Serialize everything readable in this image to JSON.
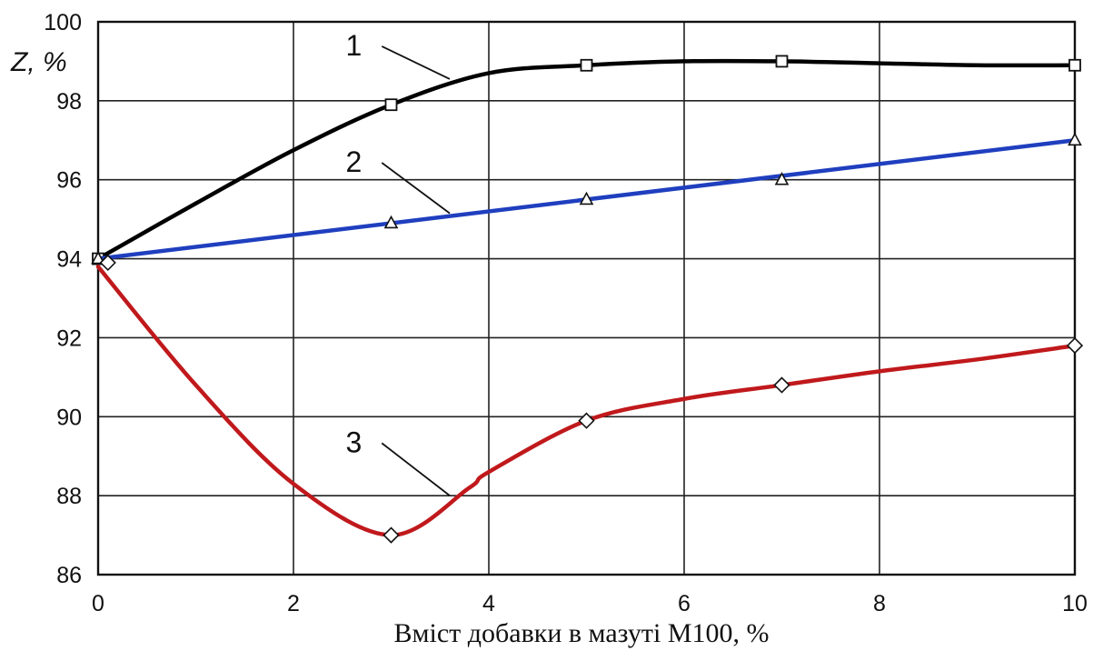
{
  "chart_data": {
    "type": "line",
    "title": "",
    "xlabel": "Вміст добавки в мазуті М100, %",
    "ylabel": "Z, %",
    "xlim": [
      0,
      10
    ],
    "ylim": [
      86,
      100
    ],
    "x_ticks": [
      0,
      2,
      4,
      6,
      8,
      10
    ],
    "y_ticks": [
      86,
      88,
      90,
      92,
      94,
      96,
      98,
      100
    ],
    "grid": true,
    "legend": "none",
    "series": [
      {
        "name": "1",
        "color": "#000000",
        "marker": "square",
        "points": [
          [
            0,
            94
          ],
          [
            3,
            97.9
          ],
          [
            5,
            98.9
          ],
          [
            7,
            99.0
          ],
          [
            10,
            98.9
          ]
        ],
        "curve": [
          [
            0,
            94
          ],
          [
            1,
            95.4
          ],
          [
            2,
            96.75
          ],
          [
            3,
            97.9
          ],
          [
            4,
            98.7
          ],
          [
            5,
            98.9
          ],
          [
            6,
            99.0
          ],
          [
            7,
            99.0
          ],
          [
            8,
            98.95
          ],
          [
            9,
            98.9
          ],
          [
            10,
            98.9
          ]
        ]
      },
      {
        "name": "2",
        "color": "#1f3fbf",
        "marker": "triangle",
        "points": [
          [
            0,
            94
          ],
          [
            3,
            94.9
          ],
          [
            5,
            95.5
          ],
          [
            7,
            96.0
          ],
          [
            10,
            97.0
          ]
        ],
        "curve": [
          [
            0,
            94
          ],
          [
            10,
            97.0
          ]
        ]
      },
      {
        "name": "3",
        "color": "#c0191c",
        "marker": "diamond",
        "points": [
          [
            0.1,
            93.9
          ],
          [
            3,
            87.0
          ],
          [
            5,
            89.9
          ],
          [
            7,
            90.8
          ],
          [
            10,
            91.8
          ]
        ],
        "curve": [
          [
            0,
            93.8
          ],
          [
            1,
            90.8
          ],
          [
            2,
            88.3
          ],
          [
            3,
            87.0
          ],
          [
            3.8,
            88.2
          ],
          [
            4,
            88.6
          ],
          [
            5,
            89.9
          ],
          [
            6,
            90.45
          ],
          [
            7,
            90.8
          ],
          [
            8,
            91.15
          ],
          [
            9,
            91.45
          ],
          [
            10,
            91.8
          ]
        ]
      }
    ],
    "annotations": [
      {
        "text": "1",
        "series": "1",
        "label_x": 2.7,
        "label_y": 99.15,
        "target_x": 3.6,
        "target_y": 98.55
      },
      {
        "text": "2",
        "series": "2",
        "label_x": 2.7,
        "label_y": 96.2,
        "target_x": 3.6,
        "target_y": 95.15
      },
      {
        "text": "3",
        "series": "3",
        "label_x": 2.7,
        "label_y": 89.1,
        "target_x": 3.6,
        "target_y": 88.0
      }
    ]
  }
}
